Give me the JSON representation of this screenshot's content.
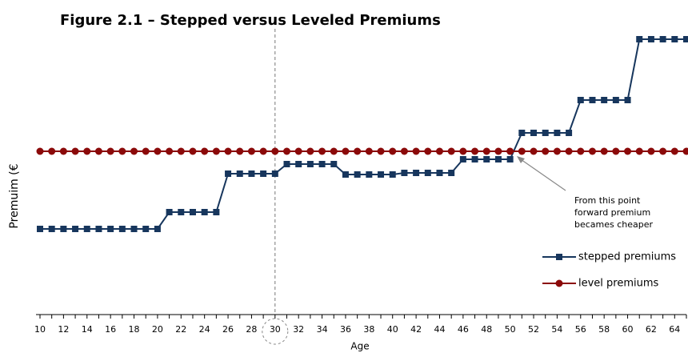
{
  "chart_data": {
    "type": "line",
    "title": "Figure 2.1 – Stepped versus Leveled Premiums",
    "x_label": "Age",
    "y_label": "Premuim (€",
    "annotation": [
      "From this point",
      "forward premium",
      "becames cheaper"
    ],
    "highlight_x": 30,
    "x": [
      10,
      11,
      12,
      13,
      14,
      15,
      16,
      17,
      18,
      19,
      20,
      21,
      22,
      23,
      24,
      25,
      26,
      27,
      28,
      29,
      30,
      31,
      32,
      33,
      34,
      35,
      36,
      37,
      38,
      39,
      40,
      41,
      42,
      43,
      44,
      45,
      46,
      47,
      48,
      49,
      50,
      51,
      52,
      53,
      54,
      55,
      56,
      57,
      58,
      59,
      60,
      61,
      62,
      63,
      64,
      65
    ],
    "xlim": [
      10,
      65
    ],
    "xticks": [
      10,
      12,
      14,
      16,
      18,
      20,
      22,
      24,
      26,
      28,
      30,
      32,
      34,
      36,
      38,
      40,
      42,
      44,
      46,
      48,
      50,
      52,
      54,
      56,
      58,
      60,
      62,
      64
    ],
    "ylim": [
      0,
      350
    ],
    "series": [
      {
        "name": "stepped premiums",
        "color": "#17365d",
        "marker": "square",
        "values": [
          107,
          107,
          107,
          107,
          107,
          107,
          107,
          107,
          107,
          107,
          107,
          128,
          128,
          128,
          128,
          128,
          176,
          176,
          176,
          176,
          176,
          188,
          188,
          188,
          188,
          188,
          175,
          175,
          175,
          175,
          175,
          177,
          177,
          177,
          177,
          177,
          194,
          194,
          194,
          194,
          194,
          227,
          227,
          227,
          227,
          227,
          268,
          268,
          268,
          268,
          268,
          344,
          344,
          344,
          344,
          344
        ]
      },
      {
        "name": "level premiums",
        "color": "#8b0a0a",
        "marker": "circle",
        "values": [
          204,
          204,
          204,
          204,
          204,
          204,
          204,
          204,
          204,
          204,
          204,
          204,
          204,
          204,
          204,
          204,
          204,
          204,
          204,
          204,
          204,
          204,
          204,
          204,
          204,
          204,
          204,
          204,
          204,
          204,
          204,
          204,
          204,
          204,
          204,
          204,
          204,
          204,
          204,
          204,
          204,
          204,
          204,
          204,
          204,
          204,
          204,
          204,
          204,
          204,
          204,
          204,
          204,
          204,
          204,
          204
        ]
      }
    ]
  }
}
